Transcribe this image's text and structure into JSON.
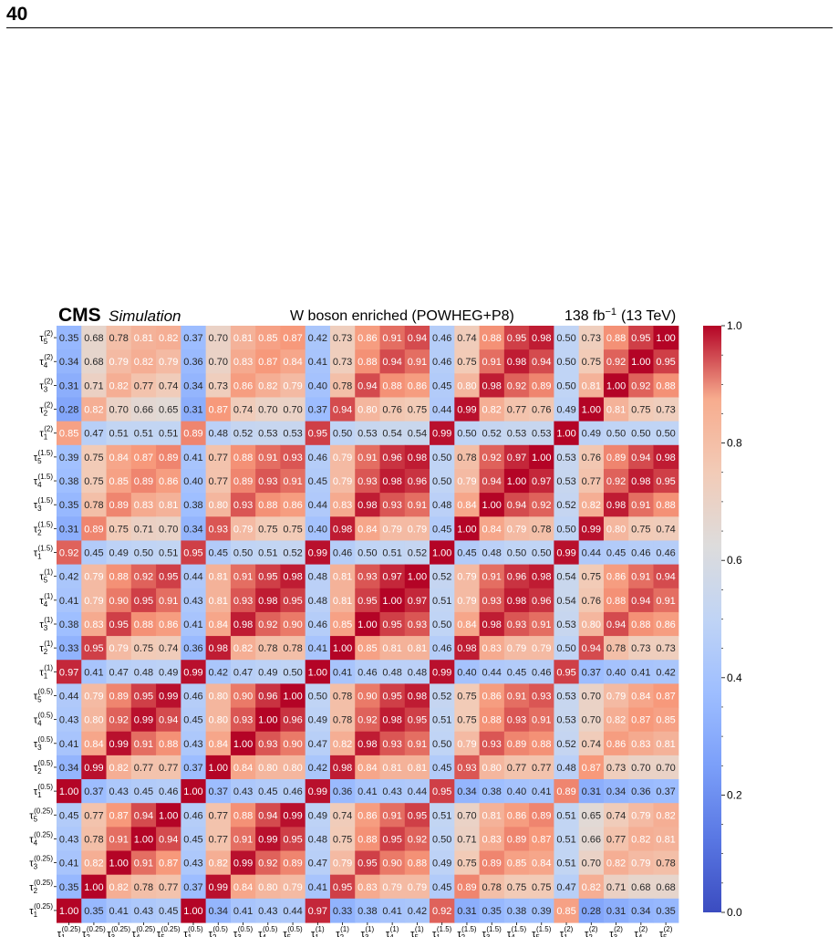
{
  "page": {
    "number": "40"
  },
  "header": {
    "experiment": "CMS",
    "label": "Simulation",
    "sample": "W boson enriched (POWHEG+P8)",
    "lumi_prefix": "138 fb",
    "lumi_exp": "−1",
    "energy": "(13 TeV)"
  },
  "colorbar": {
    "ticks": [
      "0.0",
      "0.2",
      "0.4",
      "0.6",
      "0.8",
      "1.0"
    ],
    "colormap": "coolwarm",
    "low_color": "#3b4cc0",
    "mid_color": "#dddddd",
    "high_color": "#b40426"
  },
  "chart_data": {
    "type": "heatmap",
    "title": "",
    "vmin": 0.0,
    "vmax": 1.0,
    "x_labels": [
      {
        "base": "τ",
        "sub": "1",
        "sup": "(0.25)"
      },
      {
        "base": "τ",
        "sub": "2",
        "sup": "(0.25)"
      },
      {
        "base": "τ",
        "sub": "3",
        "sup": "(0.25)"
      },
      {
        "base": "τ",
        "sub": "4",
        "sup": "(0.25)"
      },
      {
        "base": "τ",
        "sub": "5",
        "sup": "(0.25)"
      },
      {
        "base": "τ",
        "sub": "1",
        "sup": "(0.5)"
      },
      {
        "base": "τ",
        "sub": "2",
        "sup": "(0.5)"
      },
      {
        "base": "τ",
        "sub": "3",
        "sup": "(0.5)"
      },
      {
        "base": "τ",
        "sub": "4",
        "sup": "(0.5)"
      },
      {
        "base": "τ",
        "sub": "5",
        "sup": "(0.5)"
      },
      {
        "base": "τ",
        "sub": "1",
        "sup": "(1)"
      },
      {
        "base": "τ",
        "sub": "2",
        "sup": "(1)"
      },
      {
        "base": "τ",
        "sub": "3",
        "sup": "(1)"
      },
      {
        "base": "τ",
        "sub": "4",
        "sup": "(1)"
      },
      {
        "base": "τ",
        "sub": "5",
        "sup": "(1)"
      },
      {
        "base": "τ",
        "sub": "1",
        "sup": "(1.5)"
      },
      {
        "base": "τ",
        "sub": "2",
        "sup": "(1.5)"
      },
      {
        "base": "τ",
        "sub": "3",
        "sup": "(1.5)"
      },
      {
        "base": "τ",
        "sub": "4",
        "sup": "(1.5)"
      },
      {
        "base": "τ",
        "sub": "5",
        "sup": "(1.5)"
      },
      {
        "base": "τ",
        "sub": "1",
        "sup": "(2)"
      },
      {
        "base": "τ",
        "sub": "2",
        "sup": "(2)"
      },
      {
        "base": "τ",
        "sub": "3",
        "sup": "(2)"
      },
      {
        "base": "τ",
        "sub": "4",
        "sup": "(2)"
      },
      {
        "base": "τ",
        "sub": "5",
        "sup": "(2)"
      }
    ],
    "y_labels": [
      {
        "base": "τ",
        "sub": "5",
        "sup": "(2)"
      },
      {
        "base": "τ",
        "sub": "4",
        "sup": "(2)"
      },
      {
        "base": "τ",
        "sub": "3",
        "sup": "(2)"
      },
      {
        "base": "τ",
        "sub": "2",
        "sup": "(2)"
      },
      {
        "base": "τ",
        "sub": "1",
        "sup": "(2)"
      },
      {
        "base": "τ",
        "sub": "5",
        "sup": "(1.5)"
      },
      {
        "base": "τ",
        "sub": "4",
        "sup": "(1.5)"
      },
      {
        "base": "τ",
        "sub": "3",
        "sup": "(1.5)"
      },
      {
        "base": "τ",
        "sub": "2",
        "sup": "(1.5)"
      },
      {
        "base": "τ",
        "sub": "1",
        "sup": "(1.5)"
      },
      {
        "base": "τ",
        "sub": "5",
        "sup": "(1)"
      },
      {
        "base": "τ",
        "sub": "4",
        "sup": "(1)"
      },
      {
        "base": "τ",
        "sub": "3",
        "sup": "(1)"
      },
      {
        "base": "τ",
        "sub": "2",
        "sup": "(1)"
      },
      {
        "base": "τ",
        "sub": "1",
        "sup": "(1)"
      },
      {
        "base": "τ",
        "sub": "5",
        "sup": "(0.5)"
      },
      {
        "base": "τ",
        "sub": "4",
        "sup": "(0.5)"
      },
      {
        "base": "τ",
        "sub": "3",
        "sup": "(0.5)"
      },
      {
        "base": "τ",
        "sub": "2",
        "sup": "(0.5)"
      },
      {
        "base": "τ",
        "sub": "1",
        "sup": "(0.5)"
      },
      {
        "base": "τ",
        "sub": "5",
        "sup": "(0.25)"
      },
      {
        "base": "τ",
        "sub": "4",
        "sup": "(0.25)"
      },
      {
        "base": "τ",
        "sub": "3",
        "sup": "(0.25)"
      },
      {
        "base": "τ",
        "sub": "2",
        "sup": "(0.25)"
      },
      {
        "base": "τ",
        "sub": "1",
        "sup": "(0.25)"
      }
    ],
    "values": [
      [
        "0.35",
        "0.68",
        "0.78",
        "0.81",
        "0.82",
        "0.37",
        "0.70",
        "0.81",
        "0.85",
        "0.87",
        "0.42",
        "0.73",
        "0.86",
        "0.91",
        "0.94",
        "0.46",
        "0.74",
        "0.88",
        "0.95",
        "0.98",
        "0.50",
        "0.73",
        "0.88",
        "0.95",
        "1.00"
      ],
      [
        "0.34",
        "0.68",
        "0.79",
        "0.82",
        "0.79",
        "0.36",
        "0.70",
        "0.83",
        "0.87",
        "0.84",
        "0.41",
        "0.73",
        "0.88",
        "0.94",
        "0.91",
        "0.46",
        "0.75",
        "0.91",
        "0.98",
        "0.94",
        "0.50",
        "0.75",
        "0.92",
        "1.00",
        "0.95"
      ],
      [
        "0.31",
        "0.71",
        "0.82",
        "0.77",
        "0.74",
        "0.34",
        "0.73",
        "0.86",
        "0.82",
        "0.79",
        "0.40",
        "0.78",
        "0.94",
        "0.88",
        "0.86",
        "0.45",
        "0.80",
        "0.98",
        "0.92",
        "0.89",
        "0.50",
        "0.81",
        "1.00",
        "0.92",
        "0.88"
      ],
      [
        "0.28",
        "0.82",
        "0.70",
        "0.66",
        "0.65",
        "0.31",
        "0.87",
        "0.74",
        "0.70",
        "0.70",
        "0.37",
        "0.94",
        "0.80",
        "0.76",
        "0.75",
        "0.44",
        "0.99",
        "0.82",
        "0.77",
        "0.76",
        "0.49",
        "1.00",
        "0.81",
        "0.75",
        "0.73"
      ],
      [
        "0.85",
        "0.47",
        "0.51",
        "0.51",
        "0.51",
        "0.89",
        "0.48",
        "0.52",
        "0.53",
        "0.53",
        "0.95",
        "0.50",
        "0.53",
        "0.54",
        "0.54",
        "0.99",
        "0.50",
        "0.52",
        "0.53",
        "0.53",
        "1.00",
        "0.49",
        "0.50",
        "0.50",
        "0.50"
      ],
      [
        "0.39",
        "0.75",
        "0.84",
        "0.87",
        "0.89",
        "0.41",
        "0.77",
        "0.88",
        "0.91",
        "0.93",
        "0.46",
        "0.79",
        "0.91",
        "0.96",
        "0.98",
        "0.50",
        "0.78",
        "0.92",
        "0.97",
        "1.00",
        "0.53",
        "0.76",
        "0.89",
        "0.94",
        "0.98"
      ],
      [
        "0.38",
        "0.75",
        "0.85",
        "0.89",
        "0.86",
        "0.40",
        "0.77",
        "0.89",
        "0.93",
        "0.91",
        "0.45",
        "0.79",
        "0.93",
        "0.98",
        "0.96",
        "0.50",
        "0.79",
        "0.94",
        "1.00",
        "0.97",
        "0.53",
        "0.77",
        "0.92",
        "0.98",
        "0.95"
      ],
      [
        "0.35",
        "0.78",
        "0.89",
        "0.83",
        "0.81",
        "0.38",
        "0.80",
        "0.93",
        "0.88",
        "0.86",
        "0.44",
        "0.83",
        "0.98",
        "0.93",
        "0.91",
        "0.48",
        "0.84",
        "1.00",
        "0.94",
        "0.92",
        "0.52",
        "0.82",
        "0.98",
        "0.91",
        "0.88"
      ],
      [
        "0.31",
        "0.89",
        "0.75",
        "0.71",
        "0.70",
        "0.34",
        "0.93",
        "0.79",
        "0.75",
        "0.75",
        "0.40",
        "0.98",
        "0.84",
        "0.79",
        "0.79",
        "0.45",
        "1.00",
        "0.84",
        "0.79",
        "0.78",
        "0.50",
        "0.99",
        "0.80",
        "0.75",
        "0.74"
      ],
      [
        "0.92",
        "0.45",
        "0.49",
        "0.50",
        "0.51",
        "0.95",
        "0.45",
        "0.50",
        "0.51",
        "0.52",
        "0.99",
        "0.46",
        "0.50",
        "0.51",
        "0.52",
        "1.00",
        "0.45",
        "0.48",
        "0.50",
        "0.50",
        "0.99",
        "0.44",
        "0.45",
        "0.46",
        "0.46"
      ],
      [
        "0.42",
        "0.79",
        "0.88",
        "0.92",
        "0.95",
        "0.44",
        "0.81",
        "0.91",
        "0.95",
        "0.98",
        "0.48",
        "0.81",
        "0.93",
        "0.97",
        "1.00",
        "0.52",
        "0.79",
        "0.91",
        "0.96",
        "0.98",
        "0.54",
        "0.75",
        "0.86",
        "0.91",
        "0.94"
      ],
      [
        "0.41",
        "0.79",
        "0.90",
        "0.95",
        "0.91",
        "0.43",
        "0.81",
        "0.93",
        "0.98",
        "0.95",
        "0.48",
        "0.81",
        "0.95",
        "1.00",
        "0.97",
        "0.51",
        "0.79",
        "0.93",
        "0.98",
        "0.96",
        "0.54",
        "0.76",
        "0.88",
        "0.94",
        "0.91"
      ],
      [
        "0.38",
        "0.83",
        "0.95",
        "0.88",
        "0.86",
        "0.41",
        "0.84",
        "0.98",
        "0.92",
        "0.90",
        "0.46",
        "0.85",
        "1.00",
        "0.95",
        "0.93",
        "0.50",
        "0.84",
        "0.98",
        "0.93",
        "0.91",
        "0.53",
        "0.80",
        "0.94",
        "0.88",
        "0.86"
      ],
      [
        "0.33",
        "0.95",
        "0.79",
        "0.75",
        "0.74",
        "0.36",
        "0.98",
        "0.82",
        "0.78",
        "0.78",
        "0.41",
        "1.00",
        "0.85",
        "0.81",
        "0.81",
        "0.46",
        "0.98",
        "0.83",
        "0.79",
        "0.79",
        "0.50",
        "0.94",
        "0.78",
        "0.73",
        "0.73"
      ],
      [
        "0.97",
        "0.41",
        "0.47",
        "0.48",
        "0.49",
        "0.99",
        "0.42",
        "0.47",
        "0.49",
        "0.50",
        "1.00",
        "0.41",
        "0.46",
        "0.48",
        "0.48",
        "0.99",
        "0.40",
        "0.44",
        "0.45",
        "0.46",
        "0.95",
        "0.37",
        "0.40",
        "0.41",
        "0.42"
      ],
      [
        "0.44",
        "0.79",
        "0.89",
        "0.95",
        "0.99",
        "0.46",
        "0.80",
        "0.90",
        "0.96",
        "1.00",
        "0.50",
        "0.78",
        "0.90",
        "0.95",
        "0.98",
        "0.52",
        "0.75",
        "0.86",
        "0.91",
        "0.93",
        "0.53",
        "0.70",
        "0.79",
        "0.84",
        "0.87"
      ],
      [
        "0.43",
        "0.80",
        "0.92",
        "0.99",
        "0.94",
        "0.45",
        "0.80",
        "0.93",
        "1.00",
        "0.96",
        "0.49",
        "0.78",
        "0.92",
        "0.98",
        "0.95",
        "0.51",
        "0.75",
        "0.88",
        "0.93",
        "0.91",
        "0.53",
        "0.70",
        "0.82",
        "0.87",
        "0.85"
      ],
      [
        "0.41",
        "0.84",
        "0.99",
        "0.91",
        "0.88",
        "0.43",
        "0.84",
        "1.00",
        "0.93",
        "0.90",
        "0.47",
        "0.82",
        "0.98",
        "0.93",
        "0.91",
        "0.50",
        "0.79",
        "0.93",
        "0.89",
        "0.88",
        "0.52",
        "0.74",
        "0.86",
        "0.83",
        "0.81"
      ],
      [
        "0.34",
        "0.99",
        "0.82",
        "0.77",
        "0.77",
        "0.37",
        "1.00",
        "0.84",
        "0.80",
        "0.80",
        "0.42",
        "0.98",
        "0.84",
        "0.81",
        "0.81",
        "0.45",
        "0.93",
        "0.80",
        "0.77",
        "0.77",
        "0.48",
        "0.87",
        "0.73",
        "0.70",
        "0.70"
      ],
      [
        "1.00",
        "0.37",
        "0.43",
        "0.45",
        "0.46",
        "1.00",
        "0.37",
        "0.43",
        "0.45",
        "0.46",
        "0.99",
        "0.36",
        "0.41",
        "0.43",
        "0.44",
        "0.95",
        "0.34",
        "0.38",
        "0.40",
        "0.41",
        "0.89",
        "0.31",
        "0.34",
        "0.36",
        "0.37"
      ],
      [
        "0.45",
        "0.77",
        "0.87",
        "0.94",
        "1.00",
        "0.46",
        "0.77",
        "0.88",
        "0.94",
        "0.99",
        "0.49",
        "0.74",
        "0.86",
        "0.91",
        "0.95",
        "0.51",
        "0.70",
        "0.81",
        "0.86",
        "0.89",
        "0.51",
        "0.65",
        "0.74",
        "0.79",
        "0.82"
      ],
      [
        "0.43",
        "0.78",
        "0.91",
        "1.00",
        "0.94",
        "0.45",
        "0.77",
        "0.91",
        "0.99",
        "0.95",
        "0.48",
        "0.75",
        "0.88",
        "0.95",
        "0.92",
        "0.50",
        "0.71",
        "0.83",
        "0.89",
        "0.87",
        "0.51",
        "0.66",
        "0.77",
        "0.82",
        "0.81"
      ],
      [
        "0.41",
        "0.82",
        "1.00",
        "0.91",
        "0.87",
        "0.43",
        "0.82",
        "0.99",
        "0.92",
        "0.89",
        "0.47",
        "0.79",
        "0.95",
        "0.90",
        "0.88",
        "0.49",
        "0.75",
        "0.89",
        "0.85",
        "0.84",
        "0.51",
        "0.70",
        "0.82",
        "0.79",
        "0.78"
      ],
      [
        "0.35",
        "1.00",
        "0.82",
        "0.78",
        "0.77",
        "0.37",
        "0.99",
        "0.84",
        "0.80",
        "0.79",
        "0.41",
        "0.95",
        "0.83",
        "0.79",
        "0.79",
        "0.45",
        "0.89",
        "0.78",
        "0.75",
        "0.75",
        "0.47",
        "0.82",
        "0.71",
        "0.68",
        "0.68"
      ],
      [
        "1.00",
        "0.35",
        "0.41",
        "0.43",
        "0.45",
        "1.00",
        "0.34",
        "0.41",
        "0.43",
        "0.44",
        "0.97",
        "0.33",
        "0.38",
        "0.41",
        "0.42",
        "0.92",
        "0.31",
        "0.35",
        "0.38",
        "0.39",
        "0.85",
        "0.28",
        "0.31",
        "0.34",
        "0.35"
      ]
    ]
  }
}
